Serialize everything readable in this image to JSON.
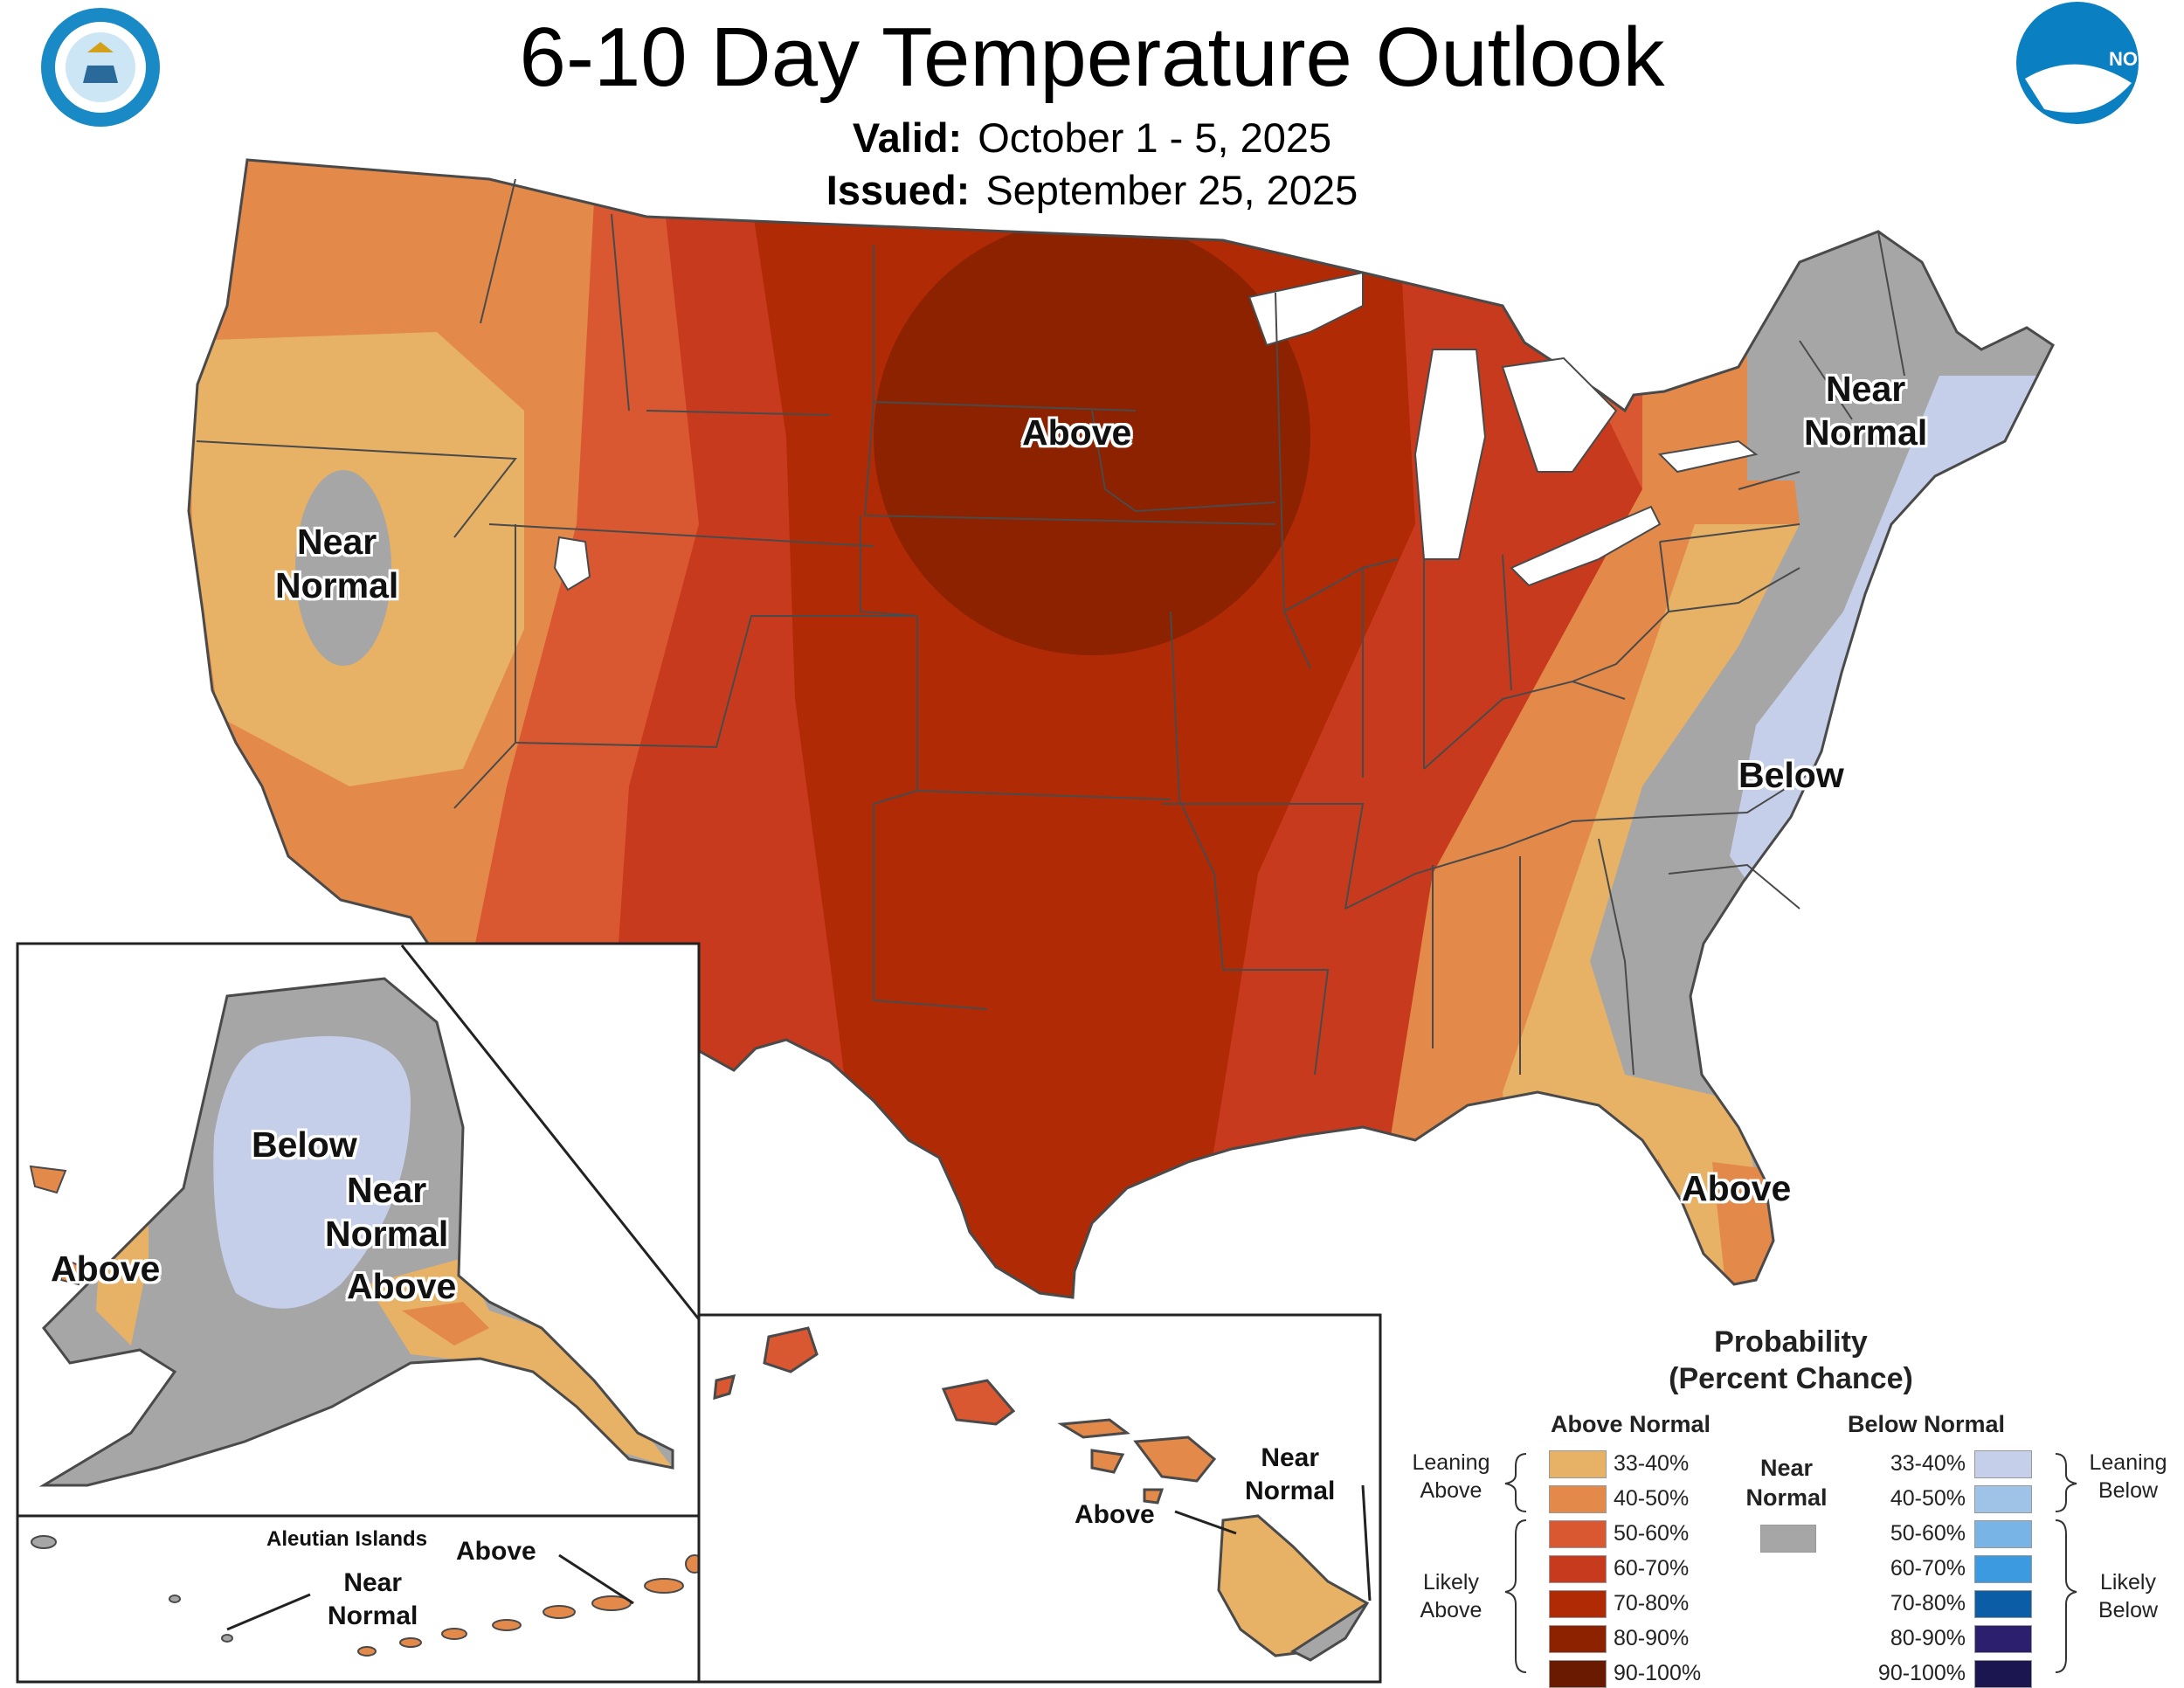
{
  "header": {
    "title": "6-10 Day Temperature Outlook",
    "valid_label": "Valid:",
    "valid_value": "October 1 - 5, 2025",
    "issued_label": "Issued:",
    "issued_value": "September 25, 2025"
  },
  "logos": {
    "left": "department-of-commerce-seal",
    "right": "noaa-logo",
    "noaa_text": "NOAA"
  },
  "map_labels": {
    "conus_above_center": "Above",
    "conus_near_normal_west": [
      "Near",
      "Normal"
    ],
    "conus_near_normal_northeast": [
      "Near",
      "Normal"
    ],
    "conus_below": "Below",
    "conus_above_florida": "Above",
    "alaska_below": "Below",
    "alaska_near_normal": [
      "Near",
      "Normal"
    ],
    "alaska_above_west": "Above",
    "alaska_above_south": "Above",
    "aleutian_title": "Aleutian Islands",
    "aleutian_above": "Above",
    "aleutian_near_normal": [
      "Near",
      "Normal"
    ],
    "hawaii_near_normal": [
      "Near",
      "Normal"
    ],
    "hawaii_above": "Above"
  },
  "legend": {
    "title_line1": "Probability",
    "title_line2": "(Percent Chance)",
    "above_header": "Above Normal",
    "below_header": "Below Normal",
    "near_header": [
      "Near",
      "Normal"
    ],
    "leaning_above": [
      "Leaning",
      "Above"
    ],
    "likely_above": [
      "Likely",
      "Above"
    ],
    "leaning_below": [
      "Leaning",
      "Below"
    ],
    "likely_below": [
      "Likely",
      "Below"
    ],
    "near_color": "#a6a6a6",
    "above": [
      {
        "range": "33-40%",
        "color": "#e8b266"
      },
      {
        "range": "40-50%",
        "color": "#e3894a"
      },
      {
        "range": "50-60%",
        "color": "#da5831"
      },
      {
        "range": "60-70%",
        "color": "#c83a1d"
      },
      {
        "range": "70-80%",
        "color": "#b02a05"
      },
      {
        "range": "80-90%",
        "color": "#8c2200"
      },
      {
        "range": "90-100%",
        "color": "#6a1a00"
      }
    ],
    "below": [
      {
        "range": "33-40%",
        "color": "#c6cfea"
      },
      {
        "range": "40-50%",
        "color": "#9fc3e6"
      },
      {
        "range": "50-60%",
        "color": "#79b4e6"
      },
      {
        "range": "60-70%",
        "color": "#3c9ae0"
      },
      {
        "range": "70-80%",
        "color": "#0b5ea6"
      },
      {
        "range": "80-90%",
        "color": "#2c1f6e"
      },
      {
        "range": "90-100%",
        "color": "#1c1650"
      }
    ]
  }
}
